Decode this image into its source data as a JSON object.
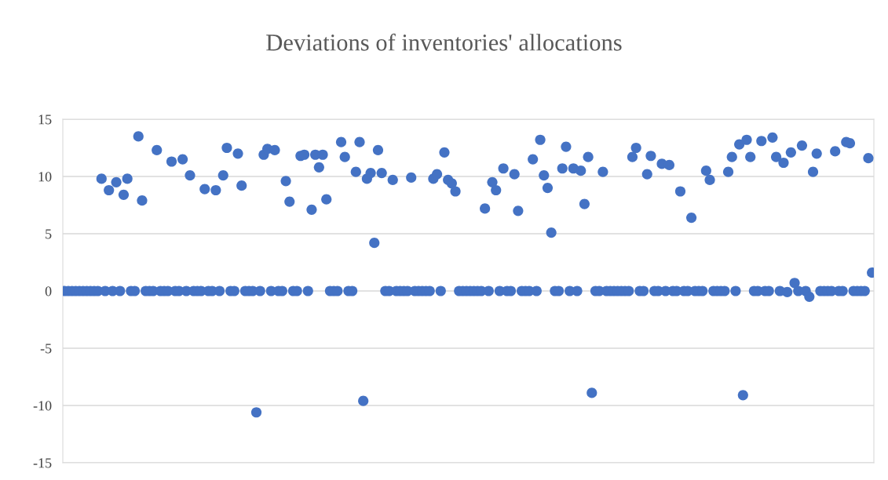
{
  "chart_data": {
    "type": "scatter",
    "title": "Deviations of inventories' allocations",
    "categories": [
      null,
      null,
      null,
      null,
      null,
      null,
      null,
      null,
      null,
      null,
      null,
      null,
      null,
      null,
      null,
      null,
      null,
      null,
      null,
      null,
      null,
      null,
      null,
      null,
      null,
      null,
      null,
      null,
      null,
      null,
      null,
      null,
      null,
      null,
      null,
      null,
      null,
      null,
      null,
      null,
      null,
      null,
      null,
      null,
      null,
      null,
      null,
      null,
      null,
      null,
      null,
      null,
      null,
      null,
      null,
      null,
      null,
      null,
      null,
      null,
      null,
      null,
      null,
      null,
      null,
      null,
      null,
      null,
      null,
      null,
      null,
      null,
      null,
      null,
      null,
      null,
      null,
      null,
      null,
      null,
      null,
      null,
      null,
      null,
      null,
      null,
      null,
      null,
      null,
      null,
      null,
      null,
      null,
      null,
      null,
      null,
      null,
      null,
      null,
      null,
      null,
      null,
      null,
      null,
      null,
      null,
      null,
      null,
      null,
      null,
      null,
      null,
      null,
      null,
      null,
      null,
      null,
      null,
      null,
      null,
      null,
      null,
      null,
      null,
      null,
      null,
      null,
      null,
      null,
      null,
      null,
      null,
      null,
      null,
      null,
      null,
      null,
      null,
      null,
      null,
      null,
      null,
      null,
      null,
      null,
      null,
      null,
      null,
      null,
      null,
      null,
      null,
      null,
      null,
      null,
      null,
      null,
      null,
      null,
      null,
      null,
      null,
      null,
      null,
      null,
      null,
      null,
      null,
      null,
      null,
      null,
      null,
      null,
      null,
      null,
      null,
      null,
      null,
      null,
      null,
      null,
      null,
      null,
      null,
      null,
      null,
      null,
      null,
      null,
      null,
      null,
      null,
      null,
      null,
      null,
      null,
      null,
      null,
      null,
      null,
      null,
      null,
      null,
      null,
      null,
      null,
      null,
      null,
      null,
      null,
      null,
      null,
      null,
      null,
      null,
      null,
      null,
      null,
      null,
      null
    ],
    "series": [
      {
        "color": "#4472c4",
        "values": [
          0,
          0,
          0,
          0,
          0,
          0,
          0,
          0,
          0,
          0,
          9.8,
          0,
          8.8,
          0,
          9.5,
          0,
          8.4,
          9.8,
          0,
          0,
          13.5,
          7.9,
          0,
          0,
          0,
          12.3,
          0,
          0,
          0,
          11.3,
          0,
          0,
          11.5,
          0,
          10.1,
          0,
          0,
          0,
          8.9,
          0,
          0,
          8.8,
          0,
          10.1,
          12.5,
          0,
          0,
          12.0,
          9.2,
          0,
          0,
          0,
          -10.6,
          0,
          11.9,
          12.4,
          0,
          12.3,
          0,
          0,
          9.6,
          7.8,
          0,
          0,
          11.8,
          11.9,
          0,
          7.1,
          11.9,
          10.8,
          11.9,
          8.0,
          0,
          0,
          0,
          13.0,
          11.7,
          0,
          0,
          10.4,
          13.0,
          -9.6,
          9.8,
          10.3,
          4.2,
          12.3,
          10.3,
          0,
          0,
          9.7,
          0,
          0,
          0,
          0,
          9.9,
          0,
          0,
          0,
          0,
          0,
          9.8,
          10.2,
          0,
          12.1,
          9.7,
          9.4,
          8.7,
          0,
          0,
          0,
          0,
          0,
          0,
          0,
          7.2,
          0,
          9.5,
          8.8,
          0,
          10.7,
          0,
          0,
          10.2,
          7.0,
          0,
          0,
          0,
          11.5,
          0,
          13.2,
          10.1,
          9.0,
          5.1,
          0,
          0,
          10.7,
          12.6,
          0,
          10.7,
          0,
          10.5,
          7.6,
          11.7,
          -8.9,
          0,
          0,
          10.4,
          0,
          0,
          0,
          0,
          0,
          0,
          0,
          11.7,
          12.5,
          0,
          0,
          10.2,
          11.8,
          0,
          0,
          11.1,
          0,
          11.0,
          0,
          0,
          8.7,
          0,
          0,
          6.4,
          0,
          0,
          0,
          10.5,
          9.7,
          0,
          0,
          0,
          0,
          10.4,
          11.7,
          0,
          12.8,
          -9.1,
          13.2,
          11.7,
          0,
          0,
          13.1,
          0,
          0,
          13.4,
          11.7,
          0,
          11.2,
          -0.1,
          12.1,
          0.7,
          0,
          12.7,
          0,
          -0.5,
          10.4,
          12.0,
          0,
          0,
          0,
          0,
          12.2,
          0,
          0,
          13.0,
          12.9,
          0,
          0,
          0,
          0,
          11.6,
          1.6
        ]
      }
    ],
    "ylim": [
      -15,
      15
    ],
    "yticks": [
      -15,
      -10,
      -5,
      0,
      5,
      10,
      15
    ],
    "tick_labels": "y",
    "grid": "y",
    "marker": "circle"
  }
}
